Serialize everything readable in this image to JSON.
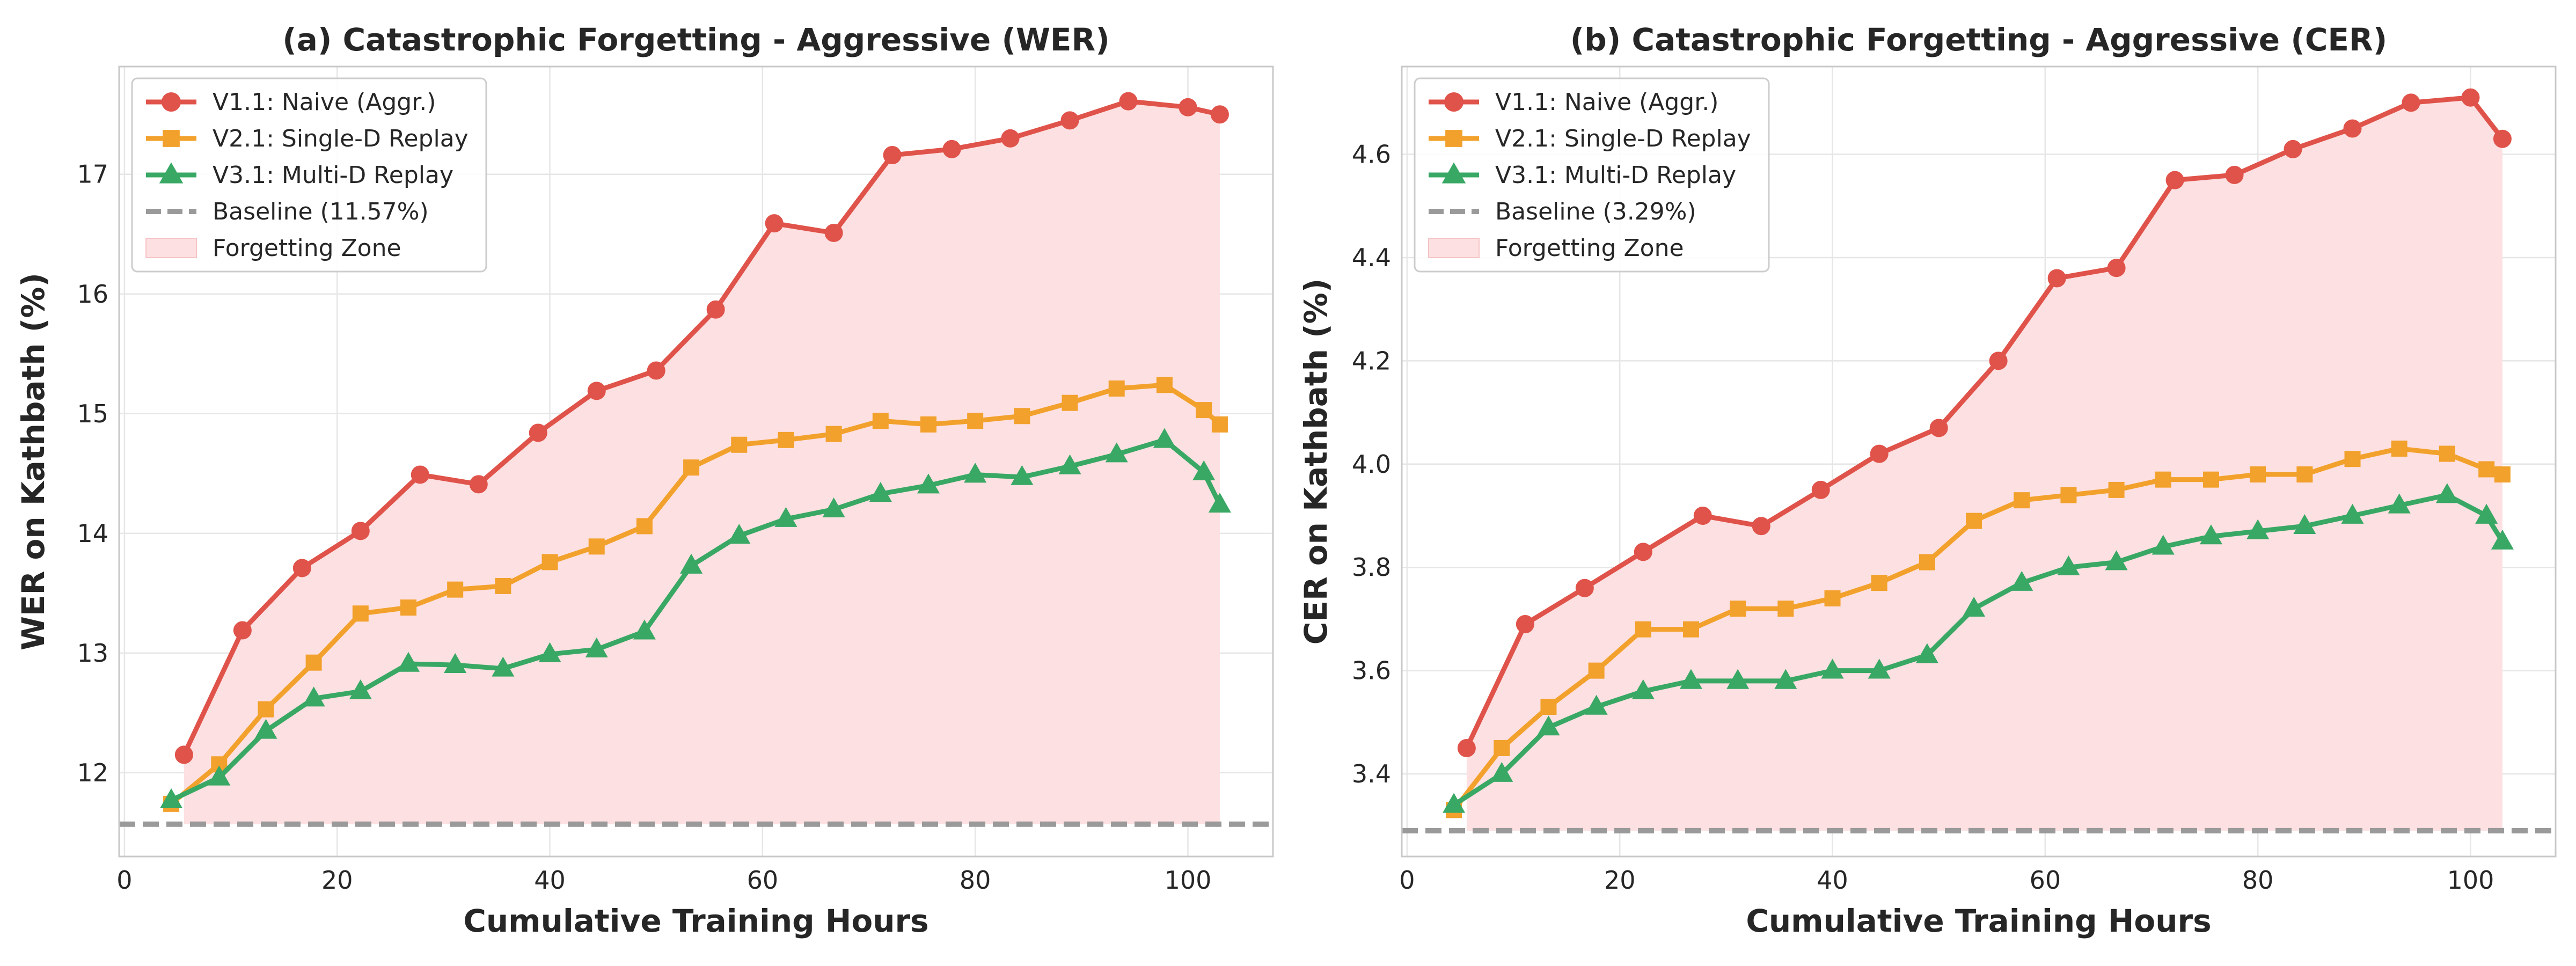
{
  "chart_data": [
    {
      "type": "line",
      "title": "(a) Catastrophic Forgetting - Aggressive (WER)",
      "xlabel": "Cumulative Training Hours",
      "ylabel": "WER on Kathbath (%)",
      "xlim": [
        -0.5,
        108
      ],
      "ylim": [
        11.3,
        17.9
      ],
      "xticks": [
        0,
        20,
        40,
        60,
        80,
        100
      ],
      "yticks": [
        12,
        13,
        14,
        15,
        16,
        17
      ],
      "grid": true,
      "legend_position": "top-left",
      "baseline": {
        "name": "Baseline (11.57%)",
        "value": 11.57,
        "color": "#9a9a9a"
      },
      "shade": {
        "name": "Forgetting Zone",
        "color": "#fde0e1"
      },
      "series": [
        {
          "name": "V1.1: Naive (Aggr.)",
          "marker": "circle",
          "color": "#e0534a",
          "x": [
            5.6,
            11.1,
            16.7,
            22.2,
            27.8,
            33.3,
            38.9,
            44.4,
            50.0,
            55.6,
            61.1,
            66.7,
            72.2,
            77.8,
            83.3,
            88.9,
            94.4,
            100.0,
            103.0
          ],
          "y": [
            12.15,
            13.19,
            13.71,
            14.02,
            14.49,
            14.41,
            14.84,
            15.19,
            15.36,
            15.87,
            16.59,
            16.51,
            17.16,
            17.21,
            17.3,
            17.45,
            17.61,
            17.56,
            17.5
          ]
        },
        {
          "name": "V2.1: Single-D Replay",
          "marker": "square",
          "color": "#f2a12c",
          "x": [
            4.4,
            8.9,
            13.3,
            17.8,
            22.2,
            26.7,
            31.1,
            35.6,
            40.0,
            44.4,
            48.9,
            53.3,
            57.8,
            62.2,
            66.7,
            71.1,
            75.6,
            80.0,
            84.4,
            88.9,
            93.3,
            97.8,
            101.5,
            103.0
          ],
          "y": [
            11.74,
            12.07,
            12.53,
            12.92,
            13.33,
            13.38,
            13.53,
            13.56,
            13.76,
            13.89,
            14.06,
            14.55,
            14.74,
            14.78,
            14.83,
            14.94,
            14.91,
            14.94,
            14.98,
            15.09,
            15.21,
            15.24,
            15.03,
            14.91
          ]
        },
        {
          "name": "V3.1: Multi-D Replay",
          "marker": "triangle",
          "color": "#38a864",
          "x": [
            4.4,
            8.9,
            13.3,
            17.8,
            22.2,
            26.7,
            31.1,
            35.6,
            40.0,
            44.4,
            48.9,
            53.3,
            57.8,
            62.2,
            66.7,
            71.1,
            75.6,
            80.0,
            84.4,
            88.9,
            93.3,
            97.8,
            101.5,
            103.0
          ],
          "y": [
            11.77,
            11.96,
            12.35,
            12.62,
            12.68,
            12.91,
            12.9,
            12.87,
            12.99,
            13.03,
            13.18,
            13.73,
            13.98,
            14.12,
            14.2,
            14.33,
            14.4,
            14.49,
            14.47,
            14.56,
            14.66,
            14.78,
            14.51,
            14.24
          ]
        }
      ]
    },
    {
      "type": "line",
      "title": "(b) Catastrophic Forgetting - Aggressive (CER)",
      "xlabel": "Cumulative Training Hours",
      "ylabel": "CER on Kathbath (%)",
      "xlim": [
        -0.5,
        108
      ],
      "ylim": [
        3.24,
        4.77
      ],
      "xticks": [
        0,
        20,
        40,
        60,
        80,
        100
      ],
      "yticks": [
        3.4,
        3.6,
        3.8,
        4.0,
        4.2,
        4.4,
        4.6
      ],
      "grid": true,
      "legend_position": "top-left",
      "baseline": {
        "name": "Baseline (3.29%)",
        "value": 3.29,
        "color": "#9a9a9a"
      },
      "shade": {
        "name": "Forgetting Zone",
        "color": "#fde0e1"
      },
      "series": [
        {
          "name": "V1.1: Naive (Aggr.)",
          "marker": "circle",
          "color": "#e0534a",
          "x": [
            5.6,
            11.1,
            16.7,
            22.2,
            27.8,
            33.3,
            38.9,
            44.4,
            50.0,
            55.6,
            61.1,
            66.7,
            72.2,
            77.8,
            83.3,
            88.9,
            94.4,
            100.0,
            103.0
          ],
          "y": [
            3.45,
            3.69,
            3.76,
            3.83,
            3.9,
            3.88,
            3.95,
            4.02,
            4.07,
            4.2,
            4.36,
            4.38,
            4.55,
            4.56,
            4.61,
            4.65,
            4.7,
            4.71,
            4.63
          ]
        },
        {
          "name": "V2.1: Single-D Replay",
          "marker": "square",
          "color": "#f2a12c",
          "x": [
            4.4,
            8.9,
            13.3,
            17.8,
            22.2,
            26.7,
            31.1,
            35.6,
            40.0,
            44.4,
            48.9,
            53.3,
            57.8,
            62.2,
            66.7,
            71.1,
            75.6,
            80.0,
            84.4,
            88.9,
            93.3,
            97.8,
            101.5,
            103.0
          ],
          "y": [
            3.33,
            3.45,
            3.53,
            3.6,
            3.68,
            3.68,
            3.72,
            3.72,
            3.74,
            3.77,
            3.81,
            3.89,
            3.93,
            3.94,
            3.95,
            3.97,
            3.97,
            3.98,
            3.98,
            4.01,
            4.03,
            4.02,
            3.99,
            3.98
          ]
        },
        {
          "name": "V3.1: Multi-D Replay",
          "marker": "triangle",
          "color": "#38a864",
          "x": [
            4.4,
            8.9,
            13.3,
            17.8,
            22.2,
            26.7,
            31.1,
            35.6,
            40.0,
            44.4,
            48.9,
            53.3,
            57.8,
            62.2,
            66.7,
            71.1,
            75.6,
            80.0,
            84.4,
            88.9,
            93.3,
            97.8,
            101.5,
            103.0
          ],
          "y": [
            3.34,
            3.4,
            3.49,
            3.53,
            3.56,
            3.58,
            3.58,
            3.58,
            3.6,
            3.6,
            3.63,
            3.72,
            3.77,
            3.8,
            3.81,
            3.84,
            3.86,
            3.87,
            3.88,
            3.9,
            3.92,
            3.94,
            3.9,
            3.85
          ]
        }
      ]
    }
  ]
}
